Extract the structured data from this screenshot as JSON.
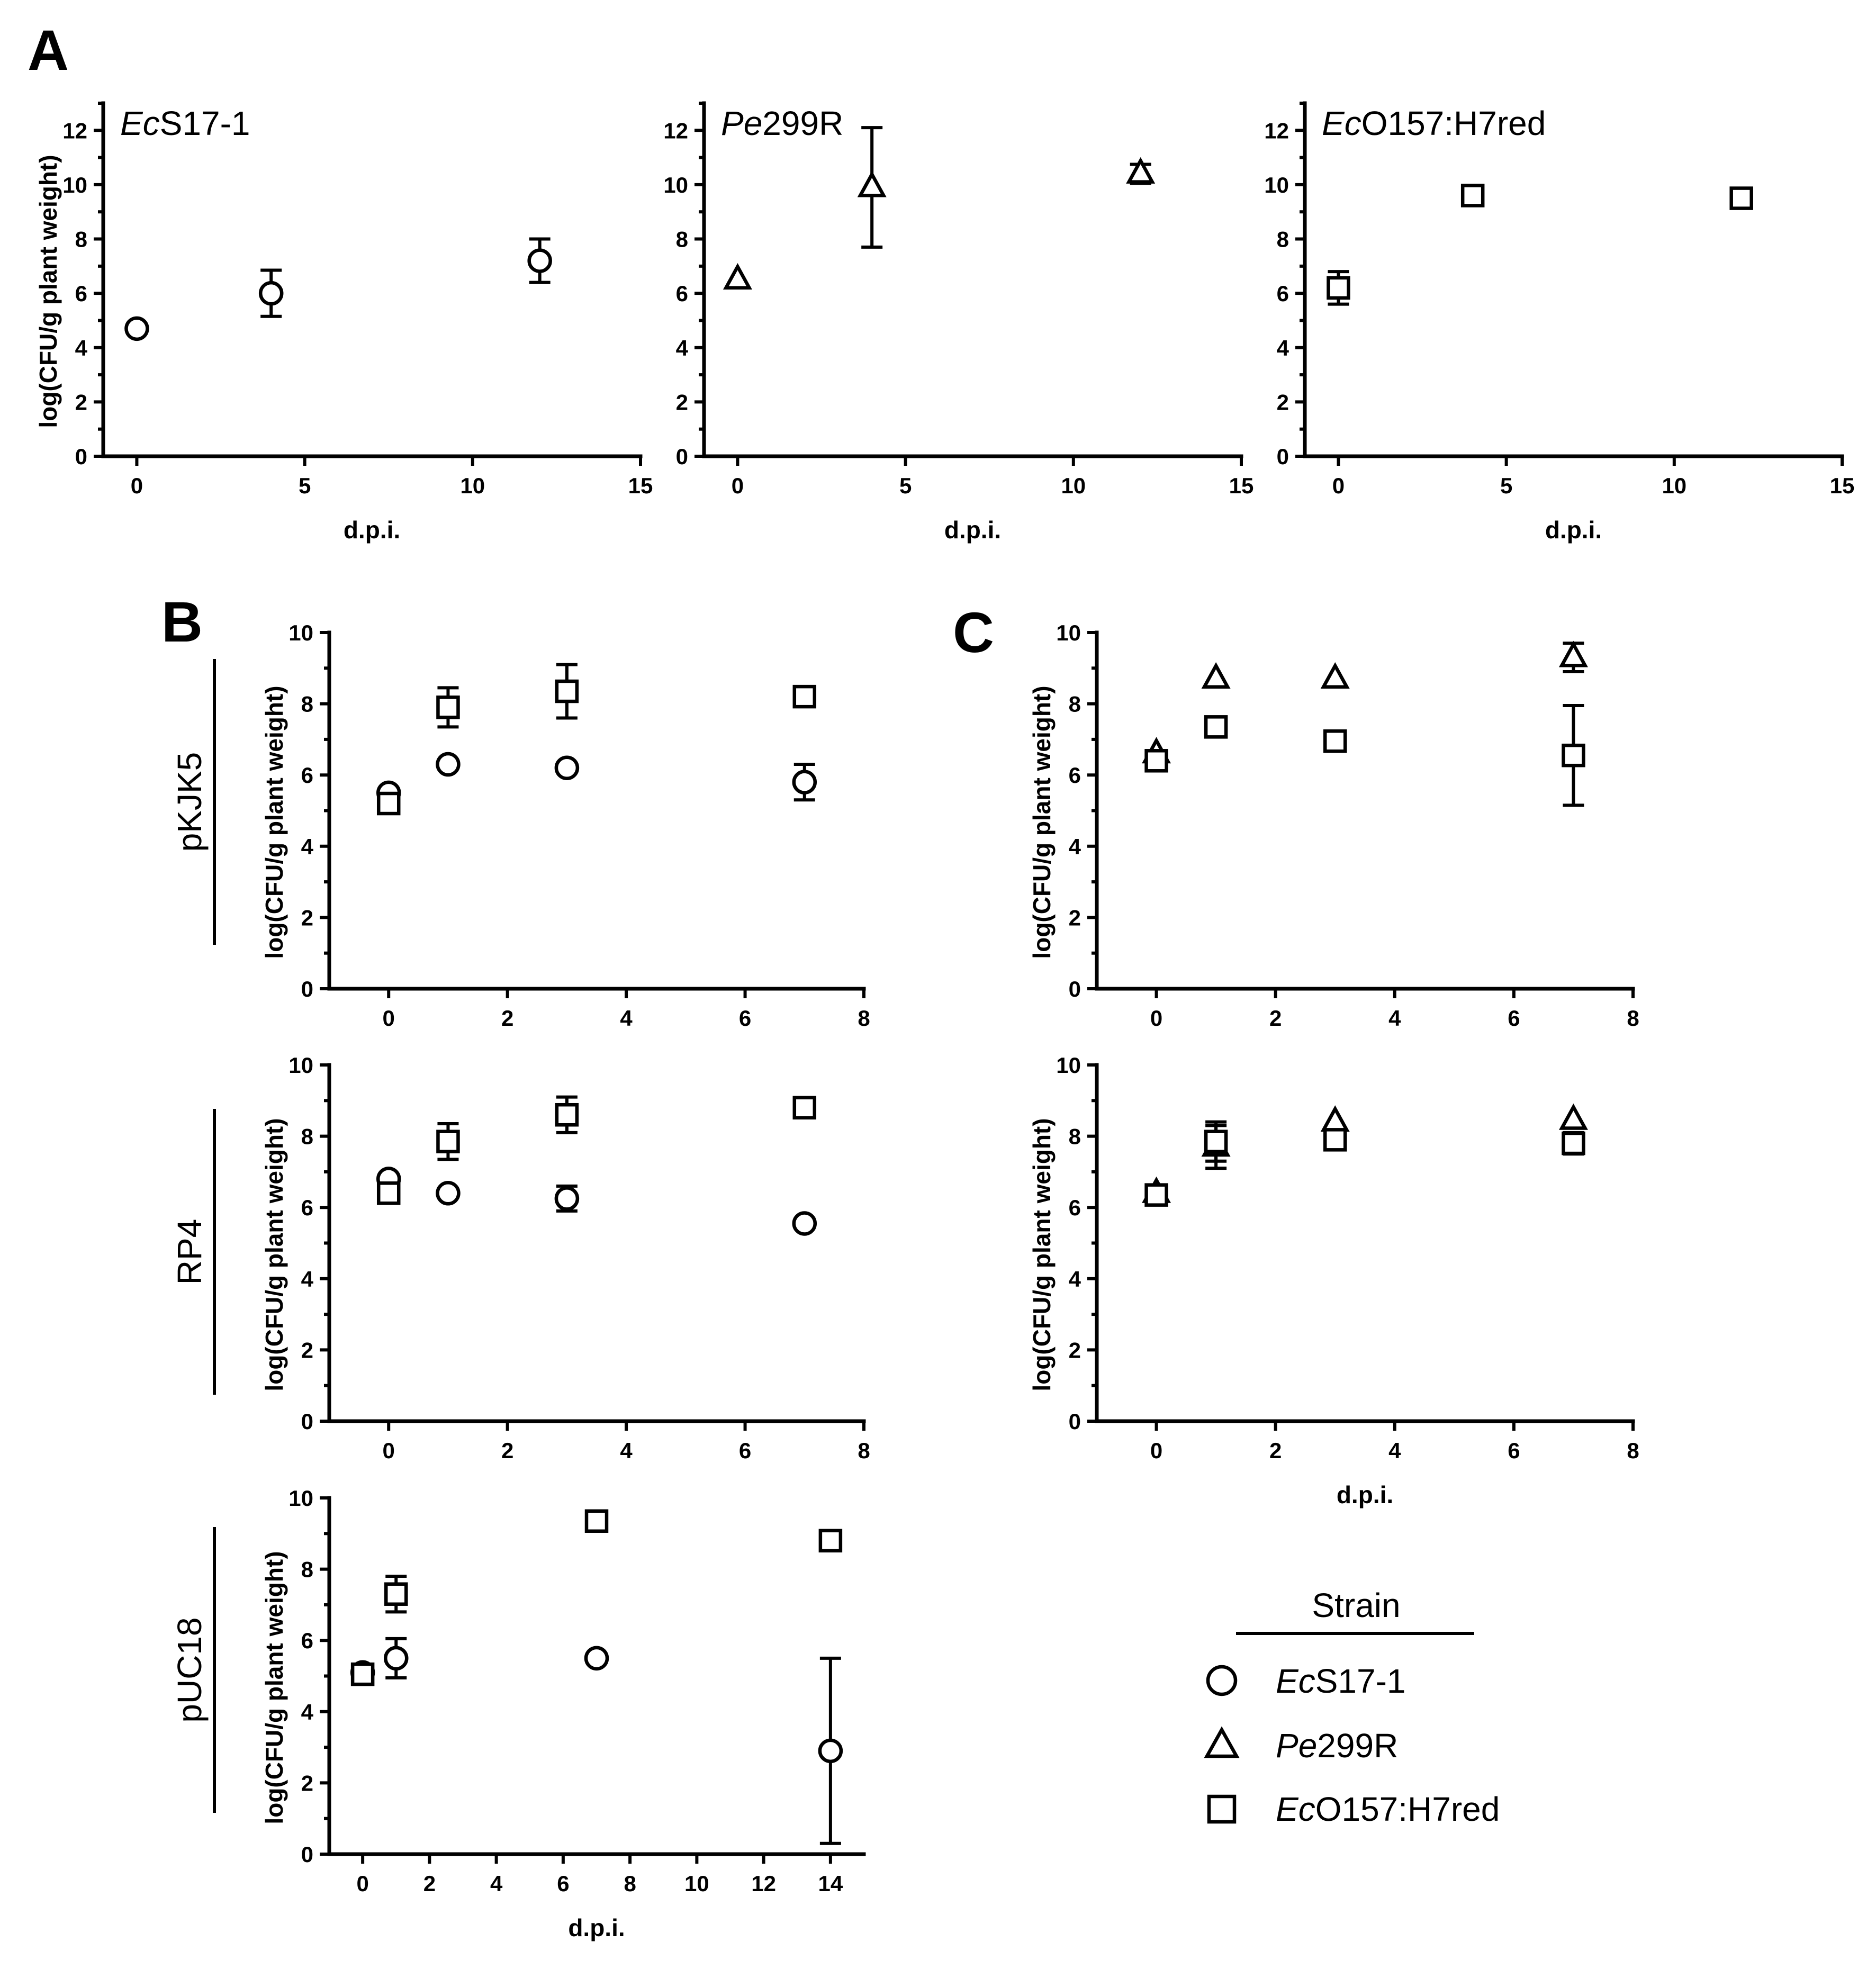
{
  "panel_labels": {
    "A": "A",
    "B": "B",
    "C": "C"
  },
  "row_labels": [
    "pKJK5",
    "RP4",
    "pUC18"
  ],
  "legend": {
    "title": "Strain",
    "entries": [
      {
        "marker": "circle",
        "prefix": "Ec",
        "rest": "S17-1"
      },
      {
        "marker": "triangle",
        "prefix": "Pe",
        "rest": "299R"
      },
      {
        "marker": "square",
        "prefix": "Ec",
        "rest": "O157:H7red"
      }
    ]
  },
  "chart_data": [
    {
      "id": "A1",
      "type": "scatter",
      "panel": "A",
      "title_prefix": "Ec",
      "title_rest": "S17-1",
      "xlabel": "d.p.i.",
      "ylabel": "log(CFU/g plant weight)",
      "xlim": [
        -1,
        15
      ],
      "ylim": [
        0,
        13
      ],
      "xticks": [
        0,
        5,
        10,
        15
      ],
      "yticks": [
        0,
        2,
        4,
        6,
        8,
        10,
        12
      ],
      "series": [
        {
          "name": "EcS17-1",
          "marker": "circle",
          "points": [
            {
              "x": 0,
              "y": 4.7,
              "err": 0.1
            },
            {
              "x": 4,
              "y": 6.0,
              "err": 0.85
            },
            {
              "x": 12,
              "y": 7.2,
              "err": 0.8
            }
          ]
        }
      ]
    },
    {
      "id": "A2",
      "type": "scatter",
      "panel": "A",
      "title_prefix": "Pe",
      "title_rest": "299R",
      "xlabel": "d.p.i.",
      "ylabel": "",
      "xlim": [
        -1,
        15
      ],
      "ylim": [
        0,
        13
      ],
      "xticks": [
        0,
        5,
        10,
        15
      ],
      "yticks": [
        0,
        2,
        4,
        6,
        8,
        10,
        12
      ],
      "series": [
        {
          "name": "Pe299R",
          "marker": "triangle",
          "points": [
            {
              "x": 0,
              "y": 6.5,
              "err": 0.1
            },
            {
              "x": 4,
              "y": 9.9,
              "err": 2.2
            },
            {
              "x": 12,
              "y": 10.4,
              "err": 0.35
            }
          ]
        }
      ]
    },
    {
      "id": "A3",
      "type": "scatter",
      "panel": "A",
      "title_prefix": "Ec",
      "title_rest": "O157:H7red",
      "xlabel": "d.p.i.",
      "ylabel": "",
      "xlim": [
        -1,
        15
      ],
      "ylim": [
        0,
        13
      ],
      "xticks": [
        0,
        5,
        10,
        15
      ],
      "yticks": [
        0,
        2,
        4,
        6,
        8,
        10,
        12
      ],
      "series": [
        {
          "name": "EcO157:H7red",
          "marker": "square",
          "points": [
            {
              "x": 0,
              "y": 6.2,
              "err": 0.6
            },
            {
              "x": 4,
              "y": 9.6,
              "err": 0.1
            },
            {
              "x": 12,
              "y": 9.5,
              "err": 0.1
            }
          ]
        }
      ]
    },
    {
      "id": "B1",
      "type": "scatter",
      "panel": "B",
      "row": "pKJK5",
      "xlabel": "",
      "ylabel": "log(CFU/g plant weight)",
      "xlim": [
        -1,
        8
      ],
      "ylim": [
        0,
        10
      ],
      "xticks": [
        0,
        2,
        4,
        6,
        8
      ],
      "yticks": [
        0,
        2,
        4,
        6,
        8,
        10
      ],
      "series": [
        {
          "name": "EcS17-1",
          "marker": "circle",
          "points": [
            {
              "x": 0,
              "y": 5.5,
              "err": 0.1
            },
            {
              "x": 1,
              "y": 6.3,
              "err": 0.1
            },
            {
              "x": 3,
              "y": 6.2,
              "err": 0.1
            },
            {
              "x": 7,
              "y": 5.8,
              "err": 0.5
            }
          ]
        },
        {
          "name": "EcO157:H7red",
          "marker": "square",
          "points": [
            {
              "x": 0,
              "y": 5.2,
              "err": 0.1
            },
            {
              "x": 1,
              "y": 7.9,
              "err": 0.55
            },
            {
              "x": 3,
              "y": 8.35,
              "err": 0.75
            },
            {
              "x": 7,
              "y": 8.2,
              "err": 0.1
            }
          ]
        }
      ]
    },
    {
      "id": "B2",
      "type": "scatter",
      "panel": "B",
      "row": "RP4",
      "xlabel": "",
      "ylabel": "log(CFU/g plant weight)",
      "xlim": [
        -1,
        8
      ],
      "ylim": [
        0,
        10
      ],
      "xticks": [
        0,
        2,
        4,
        6,
        8
      ],
      "yticks": [
        0,
        2,
        4,
        6,
        8,
        10
      ],
      "series": [
        {
          "name": "EcS17-1",
          "marker": "circle",
          "points": [
            {
              "x": 0,
              "y": 6.8,
              "err": 0.1
            },
            {
              "x": 1,
              "y": 6.4,
              "err": 0.1
            },
            {
              "x": 3,
              "y": 6.25,
              "err": 0.35
            },
            {
              "x": 7,
              "y": 5.55,
              "err": 0.1
            }
          ]
        },
        {
          "name": "EcO157:H7red",
          "marker": "square",
          "points": [
            {
              "x": 0,
              "y": 6.4,
              "err": 0.1
            },
            {
              "x": 1,
              "y": 7.85,
              "err": 0.5
            },
            {
              "x": 3,
              "y": 8.6,
              "err": 0.5
            },
            {
              "x": 7,
              "y": 8.8,
              "err": 0.1
            }
          ]
        }
      ]
    },
    {
      "id": "B3",
      "type": "scatter",
      "panel": "B",
      "row": "pUC18",
      "xlabel": "d.p.i.",
      "ylabel": "log(CFU/g plant weight)",
      "xlim": [
        -1,
        15
      ],
      "ylim": [
        0,
        10
      ],
      "xticks": [
        0,
        2,
        4,
        6,
        8,
        10,
        12,
        14
      ],
      "yticks": [
        0,
        2,
        4,
        6,
        8,
        10
      ],
      "series": [
        {
          "name": "EcS17-1",
          "marker": "circle",
          "points": [
            {
              "x": 0,
              "y": 5.1,
              "err": 0.1
            },
            {
              "x": 1,
              "y": 5.5,
              "err": 0.55
            },
            {
              "x": 7,
              "y": 5.5,
              "err": 0.1
            },
            {
              "x": 14,
              "y": 2.9,
              "err": 2.6
            }
          ]
        },
        {
          "name": "EcO157:H7red",
          "marker": "square",
          "points": [
            {
              "x": 0,
              "y": 5.05,
              "err": 0.1
            },
            {
              "x": 1,
              "y": 7.3,
              "err": 0.5
            },
            {
              "x": 7,
              "y": 9.35,
              "err": 0.1
            },
            {
              "x": 14,
              "y": 8.8,
              "err": 0.1
            }
          ]
        }
      ]
    },
    {
      "id": "C1",
      "type": "scatter",
      "panel": "C",
      "xlabel": "",
      "ylabel": "log(CFU/g plant weight)",
      "xlim": [
        -1,
        8
      ],
      "ylim": [
        0,
        10
      ],
      "xticks": [
        0,
        2,
        4,
        6,
        8
      ],
      "yticks": [
        0,
        2,
        4,
        6,
        8,
        10
      ],
      "series": [
        {
          "name": "Pe299R",
          "marker": "triangle",
          "points": [
            {
              "x": 0,
              "y": 6.6,
              "err": 0.1
            },
            {
              "x": 1,
              "y": 8.7,
              "err": 0.1
            },
            {
              "x": 3,
              "y": 8.7,
              "err": 0.1
            },
            {
              "x": 7,
              "y": 9.3,
              "err": 0.4
            }
          ]
        },
        {
          "name": "EcO157:H7red",
          "marker": "square",
          "points": [
            {
              "x": 0,
              "y": 6.4,
              "err": 0.1
            },
            {
              "x": 1,
              "y": 7.35,
              "err": 0.1
            },
            {
              "x": 3,
              "y": 6.95,
              "err": 0.1
            },
            {
              "x": 7,
              "y": 6.55,
              "err": 1.4
            }
          ]
        }
      ]
    },
    {
      "id": "C2",
      "type": "scatter",
      "panel": "C",
      "xlabel": "d.p.i.",
      "ylabel": "log(CFU/g plant weight)",
      "xlim": [
        -1,
        8
      ],
      "ylim": [
        0,
        10
      ],
      "xticks": [
        0,
        2,
        4,
        6,
        8
      ],
      "yticks": [
        0,
        2,
        4,
        6,
        8,
        10
      ],
      "series": [
        {
          "name": "Pe299R",
          "marker": "triangle",
          "points": [
            {
              "x": 0,
              "y": 6.4,
              "err": 0.1
            },
            {
              "x": 1,
              "y": 7.7,
              "err": 0.6
            },
            {
              "x": 3,
              "y": 8.4,
              "err": 0.1
            },
            {
              "x": 7,
              "y": 8.45,
              "err": 0.1
            }
          ]
        },
        {
          "name": "EcO157:H7red",
          "marker": "square",
          "points": [
            {
              "x": 0,
              "y": 6.35,
              "err": 0.1
            },
            {
              "x": 1,
              "y": 7.85,
              "err": 0.55
            },
            {
              "x": 3,
              "y": 7.9,
              "err": 0.1
            },
            {
              "x": 7,
              "y": 7.8,
              "err": 0.3
            }
          ]
        }
      ]
    }
  ]
}
